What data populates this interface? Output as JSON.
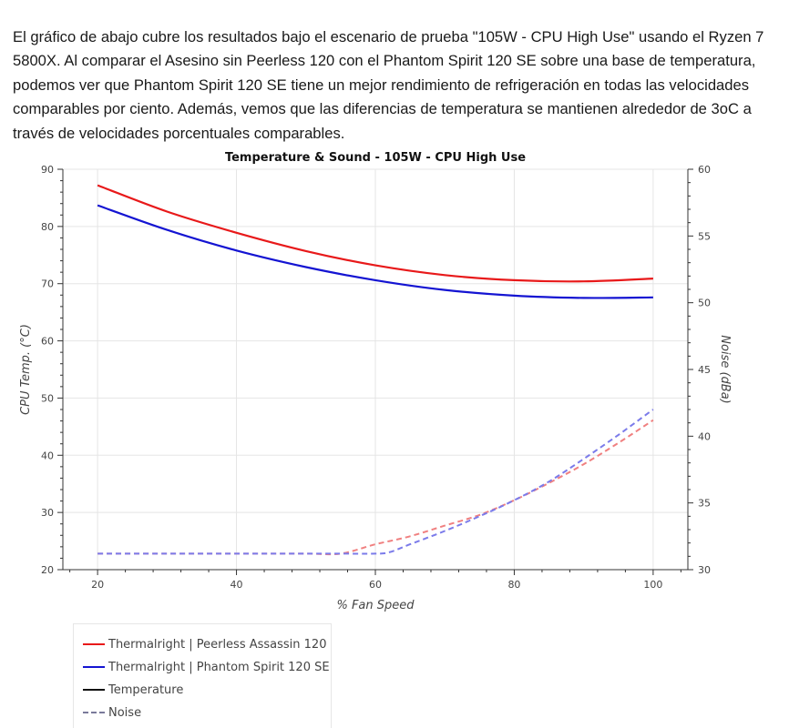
{
  "intro_text": "El gráfico de abajo cubre los resultados bajo el escenario de prueba \"105W - CPU High Use\" usando el Ryzen 7 5800X. Al comparar el Asesino sin Peerless 120 con el Phantom Spirit 120 SE sobre una base de temperatura, podemos ver que Phantom Spirit 120 SE tiene un mejor rendimiento de refrigeración en todas las velocidades comparables por ciento. Además, vemos que las diferencias de temperatura se mantienen alrededor de 3oC a través de velocidades porcentuales comparables.",
  "chart_data": {
    "type": "line",
    "title": "Temperature & Sound - 105W - CPU High Use",
    "xlabel": "% Fan Speed",
    "ylabel": "CPU Temp. (°C)",
    "y2label": "Noise (dBa)",
    "xlim": [
      15,
      105
    ],
    "ylim": [
      20,
      90
    ],
    "y2lim": [
      30,
      60
    ],
    "xticks": [
      20,
      40,
      60,
      80,
      100
    ],
    "yticks": [
      20,
      30,
      40,
      50,
      60,
      70,
      80,
      90
    ],
    "y2ticks": [
      30,
      35,
      40,
      45,
      50,
      55,
      60
    ],
    "grid": true,
    "legend_position": "bottom-left",
    "colors": {
      "assassin": "#e8191a",
      "phantom": "#1414d2",
      "assassin_noise": "#f08080",
      "phantom_noise": "#7b7bea"
    },
    "series": [
      {
        "name": "Thermalright | Peerless Assassin 120",
        "metric": "Temperature",
        "axis": "left",
        "x": [
          20,
          30,
          40,
          50,
          60,
          70,
          80,
          90,
          100
        ],
        "values": [
          87.2,
          82.6,
          78.9,
          75.7,
          73.2,
          71.5,
          70.6,
          70.4,
          70.9
        ]
      },
      {
        "name": "Thermalright | Phantom Spirit 120 SE",
        "metric": "Temperature",
        "axis": "left",
        "x": [
          20,
          30,
          40,
          50,
          60,
          70,
          80,
          90,
          100
        ],
        "values": [
          83.7,
          79.4,
          75.8,
          72.9,
          70.6,
          68.9,
          67.9,
          67.5,
          67.6
        ]
      },
      {
        "name": "Thermalright | Peerless Assassin 120",
        "metric": "Noise",
        "axis": "right",
        "x": [
          20,
          30,
          40,
          50,
          55,
          60,
          65,
          70,
          75,
          80,
          85,
          90,
          95,
          100
        ],
        "values": [
          31.2,
          31.2,
          31.2,
          31.2,
          31.2,
          31.9,
          32.5,
          33.3,
          34.1,
          35.2,
          36.5,
          37.9,
          39.5,
          41.2
        ]
      },
      {
        "name": "Thermalright | Phantom Spirit 120 SE",
        "metric": "Noise",
        "axis": "right",
        "x": [
          20,
          30,
          40,
          50,
          55,
          60,
          62,
          65,
          70,
          75,
          80,
          85,
          90,
          95,
          100
        ],
        "values": [
          31.2,
          31.2,
          31.2,
          31.2,
          31.2,
          31.2,
          31.3,
          31.9,
          32.9,
          34.0,
          35.2,
          36.6,
          38.3,
          40.1,
          42.0
        ]
      }
    ],
    "legend": [
      {
        "label": "Thermalright | Peerless Assassin 120",
        "style": "solid",
        "color": "#e8191a"
      },
      {
        "label": "Thermalright | Phantom Spirit 120 SE",
        "style": "solid",
        "color": "#1414d2"
      },
      {
        "label": "Temperature",
        "style": "solid",
        "color": "#111111"
      },
      {
        "label": "Noise",
        "style": "dashed",
        "color": "#7a7a9a"
      }
    ]
  }
}
